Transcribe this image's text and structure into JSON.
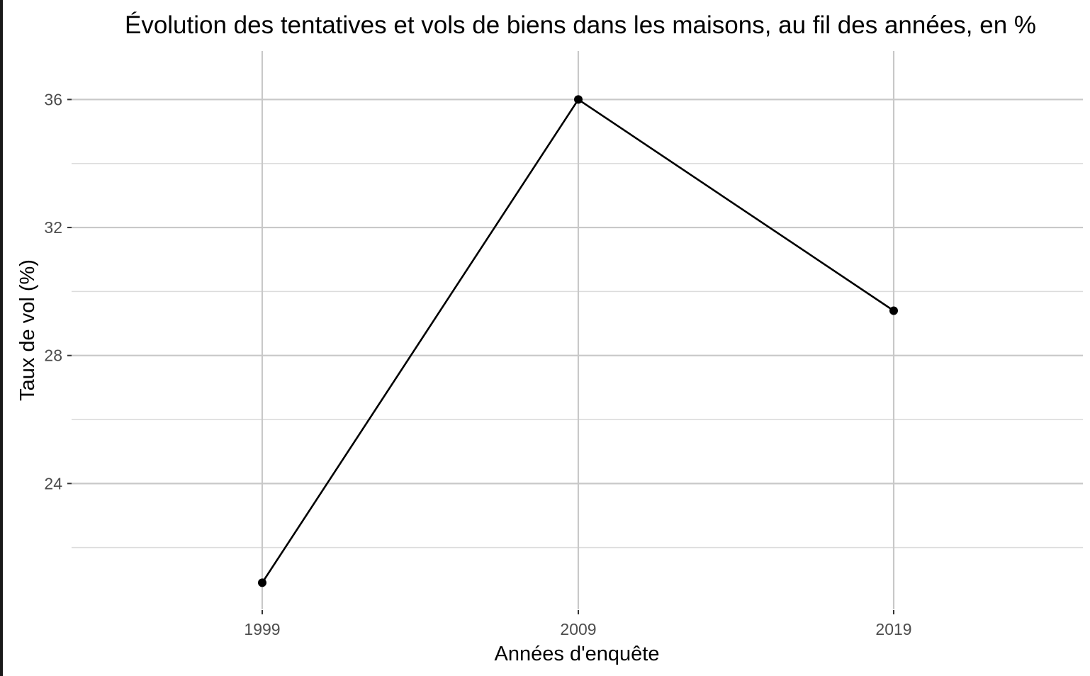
{
  "chart_data": {
    "type": "line",
    "title": "Évolution des tentatives et vols de biens dans les maisons, au fil des années, en %",
    "xlabel": "Années d'enquête",
    "ylabel": "Taux de vol (%)",
    "categories": [
      "1999",
      "2009",
      "2019"
    ],
    "series": [
      {
        "values": [
          20.9,
          36.0,
          29.4
        ]
      }
    ],
    "yticks": [
      24,
      28,
      32,
      36
    ],
    "ytick_labels": [
      "24",
      "28",
      "32",
      "36"
    ],
    "ylim": [
      20.0,
      36.74
    ],
    "grid": true,
    "legend": "none",
    "colors": {
      "line": "#000000",
      "point": "#000000",
      "grid_major": "#c8c8c8",
      "grid_minor": "#dcdcdc",
      "background": "#ffffff"
    }
  }
}
